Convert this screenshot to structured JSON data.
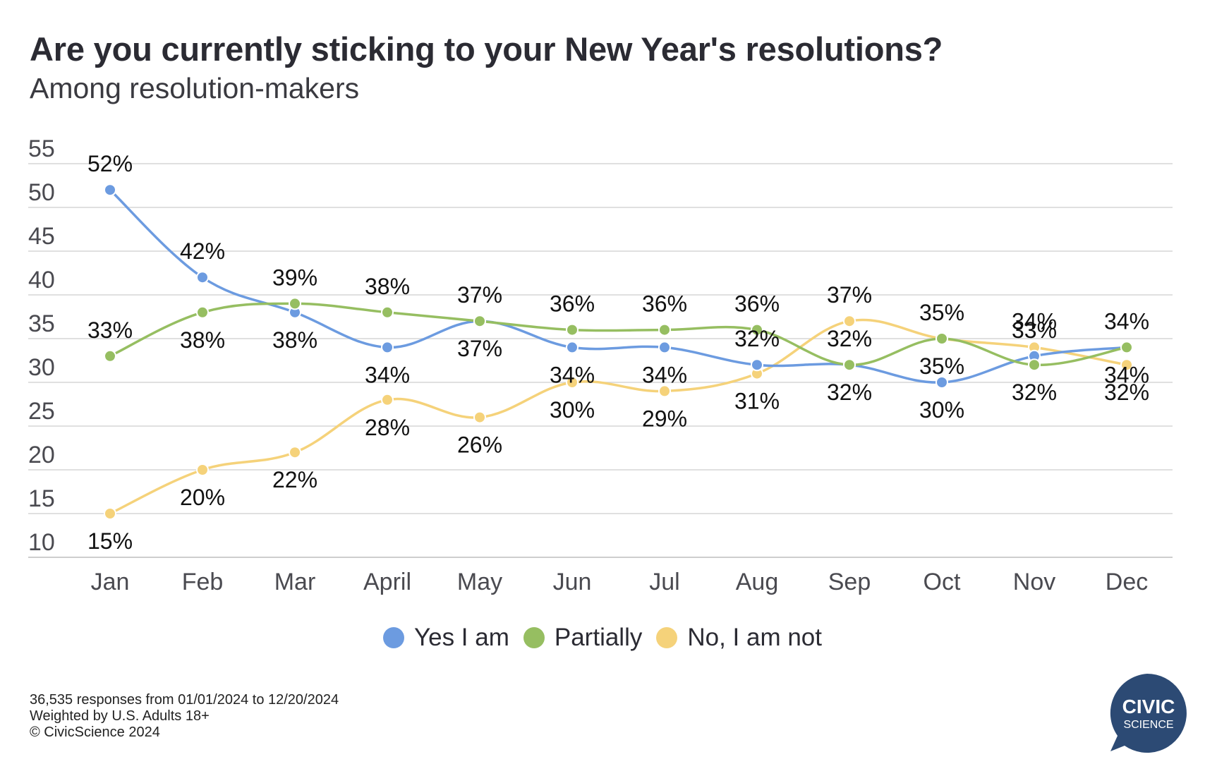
{
  "title": "Are you currently sticking to your New Year's resolutions?",
  "subtitle": "Among resolution-makers",
  "footer": {
    "line1": "36,535 responses from 01/01/2024 to 12/20/2024",
    "line2": "Weighted by U.S. Adults 18+",
    "line3": "© CivicScience 2024"
  },
  "logo": {
    "line1": "CIVIC",
    "line2": "SCIENCE",
    "color": "#2c4a74"
  },
  "chart_data": {
    "type": "line",
    "title": "Are you currently sticking to your New Year's resolutions?",
    "subtitle": "Among resolution-makers",
    "xlabel": "",
    "ylabel": "",
    "categories": [
      "Jan",
      "Feb",
      "Mar",
      "April",
      "May",
      "Jun",
      "Jul",
      "Aug",
      "Sep",
      "Oct",
      "Nov",
      "Dec"
    ],
    "y_ticks": [
      "10",
      "15",
      "20",
      "25",
      "30",
      "35",
      "40",
      "45",
      "50",
      "55"
    ],
    "ylim": [
      10,
      55
    ],
    "grid": true,
    "legend_position": "bottom",
    "series": [
      {
        "name": "Yes I am",
        "color": "#6c9be0",
        "values": [
          52,
          42,
          38,
          34,
          37,
          34,
          34,
          32,
          32,
          30,
          33,
          34
        ],
        "labels": [
          "52%",
          "42%",
          "38%",
          "34%",
          "37%",
          "34%",
          "34%",
          "32%",
          "32%",
          "30%",
          "33%",
          "34%"
        ]
      },
      {
        "name": "Partially",
        "color": "#96be61",
        "values": [
          33,
          38,
          39,
          38,
          37,
          36,
          36,
          36,
          32,
          35,
          32,
          34
        ],
        "labels": [
          "33%",
          "38%",
          "39%",
          "38%",
          "37%",
          "36%",
          "36%",
          "36%",
          "32%",
          "35%",
          "32%",
          "34%"
        ]
      },
      {
        "name": "No, I am not",
        "color": "#f5d27a",
        "values": [
          15,
          20,
          22,
          28,
          26,
          30,
          29,
          31,
          37,
          35,
          34,
          32
        ],
        "labels": [
          "15%",
          "20%",
          "22%",
          "28%",
          "26%",
          "30%",
          "29%",
          "31%",
          "37%",
          "35%",
          "34%",
          "32%"
        ]
      }
    ]
  }
}
